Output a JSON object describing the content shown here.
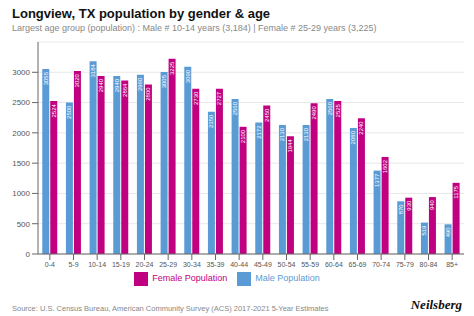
{
  "chart_data": {
    "type": "bar",
    "title": "Longview, TX population by gender & age",
    "subtitle": "Largest age group (population) : Male # 10-14 years (3,184) | Female # 25-29 years (3,225)",
    "annotations": [
      "Source: U.S. Census Bureau, American Community Survey (ACS) 2017-2021 5-Year Estimates",
      "Neilsberg"
    ],
    "categories": [
      "0-4",
      "5-9",
      "10-14",
      "15-19",
      "20-24",
      "25-29",
      "30-34",
      "35-39",
      "40-44",
      "45-49",
      "50-54",
      "55-59",
      "60-64",
      "65-69",
      "70-74",
      "75-79",
      "80-84",
      "85+"
    ],
    "series": [
      {
        "name": "Male Population",
        "color": "#5b9bd5",
        "values": [
          3055,
          2500,
          3184,
          2940,
          2960,
          3005,
          3090,
          2350,
          2560,
          2172,
          2130,
          2130,
          2560,
          2080,
          1377,
          870,
          519,
          490
        ]
      },
      {
        "name": "Female Population",
        "color": "#c00080",
        "values": [
          2524,
          3020,
          2940,
          2864,
          2800,
          3225,
          2730,
          2727,
          2100,
          2450,
          1944,
          2490,
          2525,
          2240,
          1602,
          930,
          940,
          1175
        ]
      }
    ],
    "ylim": [
      0,
      3500
    ],
    "yticks": [
      0,
      500,
      1000,
      1500,
      2000,
      2500,
      3000
    ],
    "grid": true,
    "data_labels": true,
    "legend": "bottom"
  }
}
